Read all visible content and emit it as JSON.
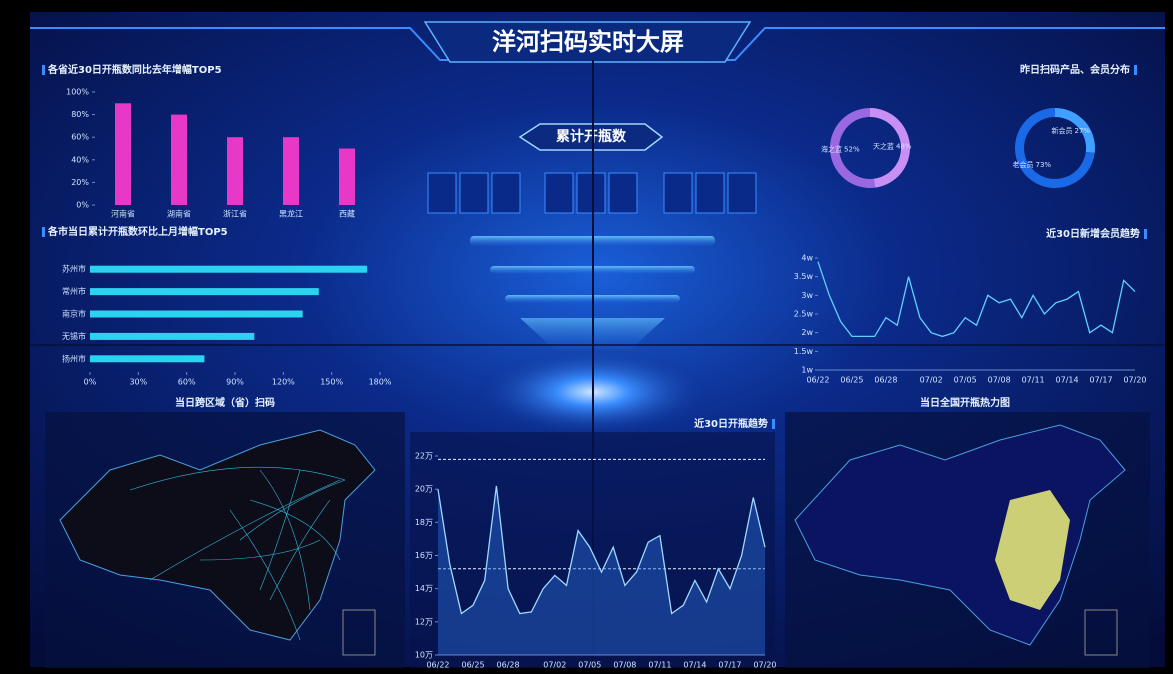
{
  "header": {
    "title": "洋河扫码实时大屏",
    "counter_label": "累计开瓶数"
  },
  "maps": [
    {
      "title": "当日跨区域（省）扫码"
    },
    {
      "title": "当日全国开瓶热力图"
    }
  ],
  "chart_data": [
    {
      "type": "bar",
      "title": "各省近30日开瓶数同比去年增幅TOP5",
      "categories": [
        "河南省",
        "湖南省",
        "浙江省",
        "黑龙江",
        "西藏"
      ],
      "values": [
        90,
        80,
        60,
        60,
        50
      ],
      "color": "#e838c8",
      "ylim": [
        0,
        100
      ],
      "yticks": [
        {
          "value": 0,
          "label": "0%"
        },
        {
          "value": 20,
          "label": "20%"
        },
        {
          "value": 40,
          "label": "40%"
        },
        {
          "value": 60,
          "label": "60%"
        },
        {
          "value": 80,
          "label": "80%"
        },
        {
          "value": 100,
          "label": "100%"
        }
      ]
    },
    {
      "type": "hbar",
      "title": "各市当日累计开瓶数环比上月增幅TOP5",
      "categories": [
        "苏州市",
        "常州市",
        "南京市",
        "无锡市",
        "扬州市"
      ],
      "values": [
        172,
        142,
        132,
        102,
        71
      ],
      "color": "#2ad4f0",
      "xlim": [
        0,
        180
      ],
      "xticks": [
        {
          "value": 0,
          "label": "0%"
        },
        {
          "value": 30,
          "label": "30%"
        },
        {
          "value": 60,
          "label": "60%"
        },
        {
          "value": 90,
          "label": "90%"
        },
        {
          "value": 120,
          "label": "120%"
        },
        {
          "value": 150,
          "label": "150%"
        },
        {
          "value": 180,
          "label": "180%"
        }
      ]
    },
    {
      "type": "pie",
      "title": "昨日扫码产品、会员分布",
      "categories": [
        "天之蓝",
        "海之蓝"
      ],
      "values": [
        48,
        52
      ],
      "value_labels": [
        "48%",
        "52%"
      ],
      "colors": [
        "#c890f5",
        "#9a68e0"
      ]
    },
    {
      "type": "pie",
      "categories": [
        "新会员",
        "老会员"
      ],
      "values": [
        27,
        73
      ],
      "value_labels": [
        "27%",
        "73%"
      ],
      "colors": [
        "#40a0ff",
        "#1a6ae8"
      ]
    },
    {
      "type": "line",
      "title": "近30日新增会员趋势",
      "x": [
        "06/22",
        null,
        null,
        "06/25",
        null,
        null,
        "06/28",
        null,
        null,
        null,
        "07/02",
        null,
        null,
        "07/05",
        null,
        null,
        "07/08",
        null,
        null,
        "07/11",
        null,
        null,
        "07/14",
        null,
        null,
        "07/17",
        null,
        null,
        "07/20"
      ],
      "values": [
        3.9,
        3.0,
        2.3,
        1.9,
        1.9,
        1.9,
        2.4,
        2.2,
        3.5,
        2.4,
        2.0,
        1.9,
        2.0,
        2.4,
        2.2,
        3.0,
        2.8,
        2.9,
        2.4,
        3.0,
        2.5,
        2.8,
        2.9,
        3.1,
        2.0,
        2.2,
        2.0,
        3.4,
        3.1
      ],
      "color": "#5fd0ff",
      "ylim": [
        1,
        4
      ],
      "yticks": [
        {
          "value": 1,
          "label": "1w"
        },
        {
          "value": 1.5,
          "label": "1.5w"
        },
        {
          "value": 2,
          "label": "2w"
        },
        {
          "value": 2.5,
          "label": "2.5w"
        },
        {
          "value": 3,
          "label": "3w"
        },
        {
          "value": 3.5,
          "label": "3.5w"
        },
        {
          "value": 4,
          "label": "4w"
        }
      ]
    },
    {
      "type": "area",
      "title": "近30日开瓶趋势",
      "x": [
        "06/22",
        null,
        null,
        "06/25",
        null,
        null,
        "06/28",
        null,
        null,
        null,
        "07/02",
        null,
        null,
        "07/05",
        null,
        null,
        "07/08",
        null,
        null,
        "07/11",
        null,
        null,
        "07/14",
        null,
        null,
        "07/17",
        null,
        null,
        "07/20"
      ],
      "values": [
        20.0,
        15.5,
        12.5,
        13.0,
        14.5,
        20.2,
        14.0,
        12.5,
        12.6,
        14.0,
        14.8,
        14.2,
        17.5,
        16.5,
        15.0,
        16.5,
        14.2,
        15.0,
        16.8,
        17.2,
        12.5,
        13.0,
        14.5,
        13.2,
        15.2,
        14.0,
        16.0,
        19.5,
        16.5
      ],
      "reference_lines": [
        21.8,
        15.2
      ],
      "color": "#9fd8ff",
      "ylim": [
        10,
        22
      ],
      "yticks": [
        {
          "value": 10,
          "label": "10万"
        },
        {
          "value": 12,
          "label": "12万"
        },
        {
          "value": 14,
          "label": "14万"
        },
        {
          "value": 16,
          "label": "16万"
        },
        {
          "value": 18,
          "label": "18万"
        },
        {
          "value": 20,
          "label": "20万"
        },
        {
          "value": 22,
          "label": "22万"
        }
      ]
    }
  ]
}
